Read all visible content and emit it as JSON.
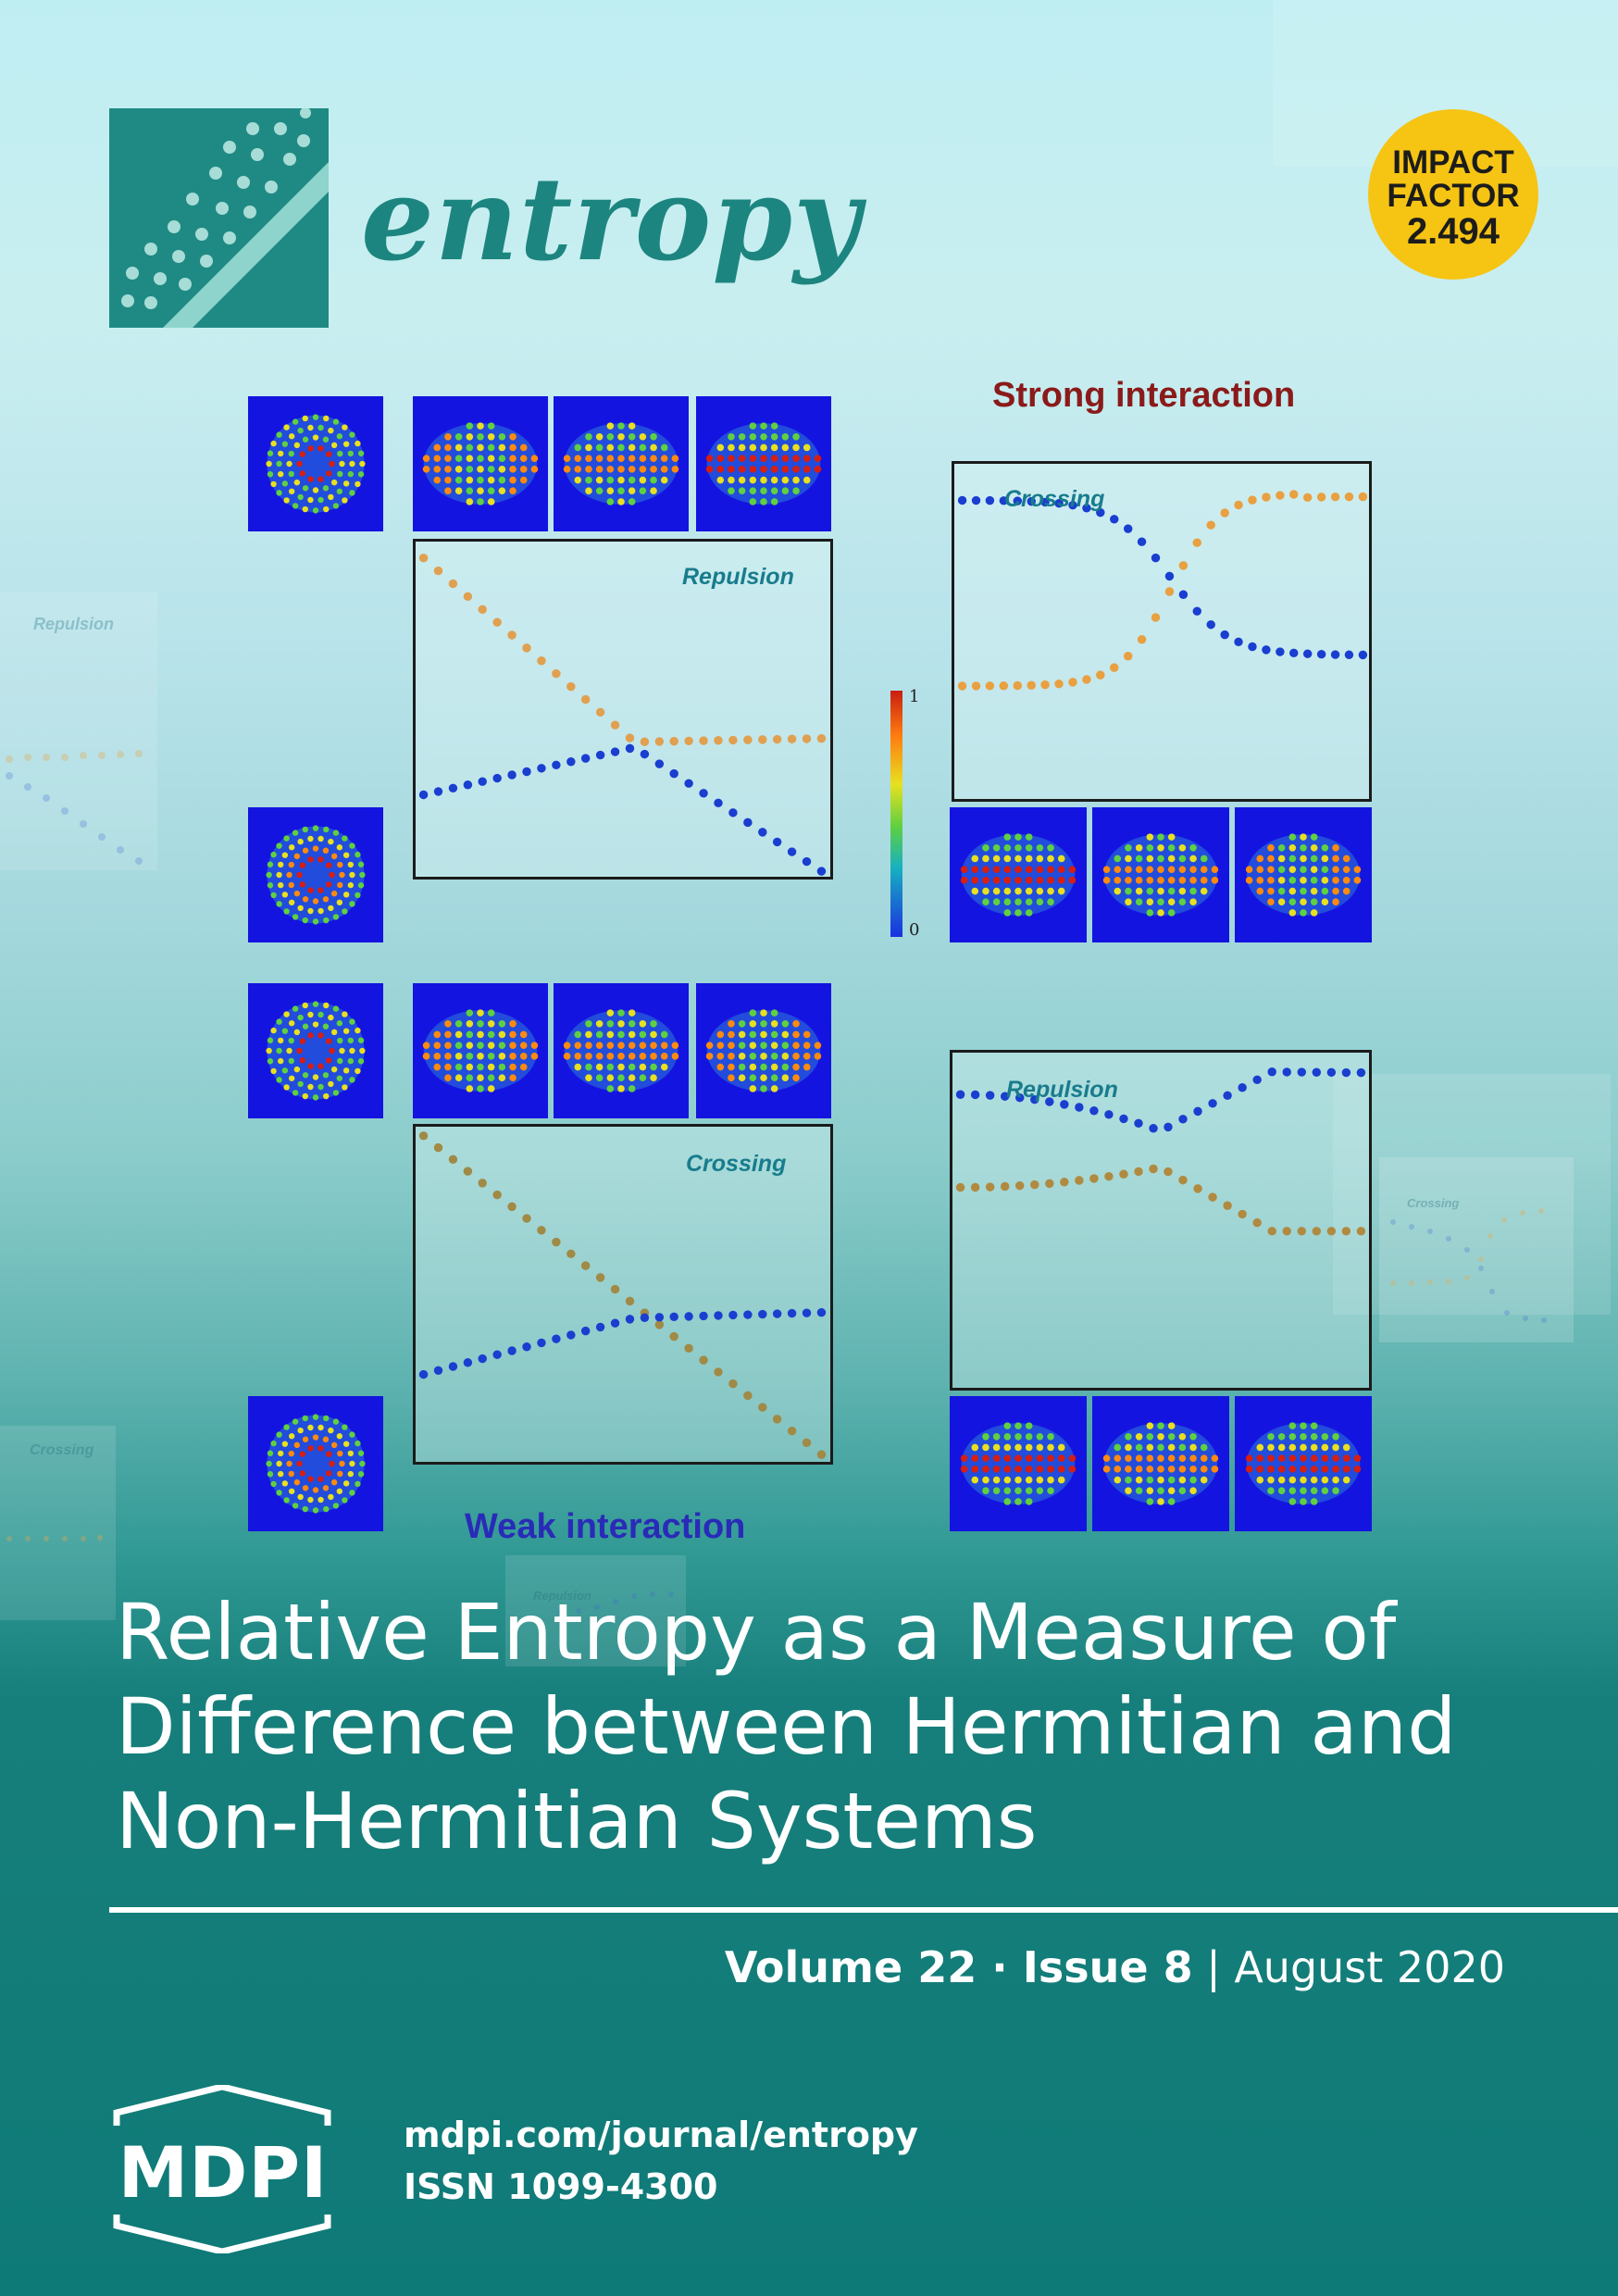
{
  "journal": {
    "name": "entropy"
  },
  "impact_factor": {
    "line1": "IMPACT",
    "line2": "FACTOR",
    "value": "2.494"
  },
  "figure": {
    "strong_heading": "Strong interaction",
    "weak_heading": "Weak interaction",
    "colorbar": {
      "max_label": "1",
      "min_label": "0"
    },
    "panels": {
      "weak_top": {
        "title": "Repulsion"
      },
      "weak_bottom": {
        "title": "Crossing"
      },
      "strong_top": {
        "title": "Crossing"
      },
      "strong_bottom": {
        "title": "Repulsion"
      }
    },
    "faded_labels": {
      "left_top": "Repulsion",
      "left_bottom": "Crossing",
      "right_mid": "Crossing",
      "bottom_center": "Repulsion"
    }
  },
  "article": {
    "title_line1": "Relative Entropy as a Measure of",
    "title_line2": "Difference between Hermitian and",
    "title_line3": "Non-Hermitian Systems"
  },
  "issue": {
    "volume": "Volume 22",
    "separator": " · ",
    "issue": "Issue 8",
    "divider": " | ",
    "date": "August 2020"
  },
  "publisher": {
    "logo_text": "MDPI",
    "url": "mdpi.com/journal/entropy",
    "issn": "ISSN 1099-4300"
  },
  "colors": {
    "teal": "#0e7a77",
    "badge": "#f6c413",
    "strong": "#8b1a1a",
    "weak": "#2a2ab8",
    "orange_dot": "#e8a040",
    "blue_dot": "#1a3ed0",
    "brown_dot": "#a08a40"
  }
}
